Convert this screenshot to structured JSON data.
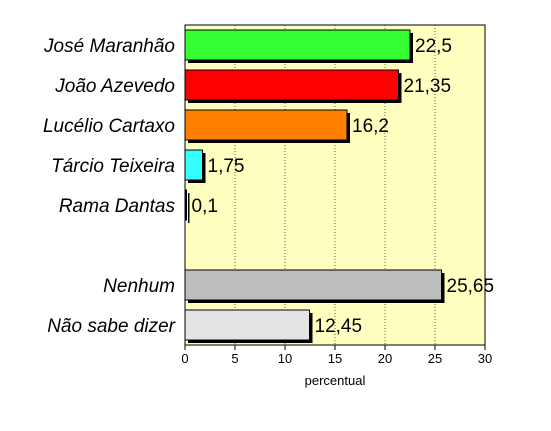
{
  "chart_data": {
    "type": "bar",
    "orientation": "horizontal",
    "background_color": "#ffffc0",
    "grid": true,
    "xlabel": "percentual",
    "xlim": [
      0,
      30
    ],
    "xticks": [
      "0",
      "5",
      "10",
      "15",
      "20",
      "25",
      "30"
    ],
    "bars": [
      {
        "category": "José Maranhão",
        "value": 22.5,
        "label": "22,5",
        "color": "#33ff33"
      },
      {
        "category": "João Azevedo",
        "value": 21.35,
        "label": "21,35",
        "color": "#ff0000"
      },
      {
        "category": "Lucélio Cartaxo",
        "value": 16.2,
        "label": "16,2",
        "color": "#ff7f00"
      },
      {
        "category": "Tárcio Teixeira",
        "value": 1.75,
        "label": "1,75",
        "color": "#33ffff"
      },
      {
        "category": "Rama Dantas",
        "value": 0.1,
        "label": "0,1",
        "color": "#000080"
      },
      {
        "category": "",
        "value": null,
        "label": "",
        "color": ""
      },
      {
        "category": "Nenhum",
        "value": 25.65,
        "label": "25,65",
        "color": "#bdbdbd"
      },
      {
        "category": "Não sabe dizer",
        "value": 12.45,
        "label": "12,45",
        "color": "#e3e3e3"
      }
    ]
  }
}
